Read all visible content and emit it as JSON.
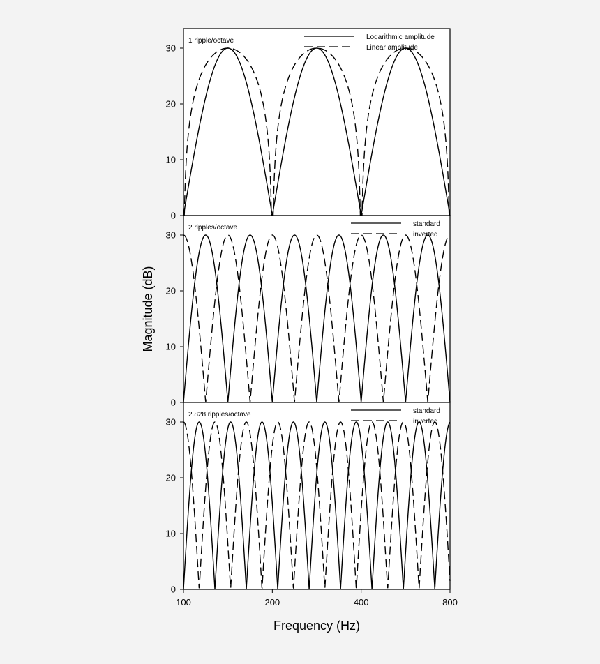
{
  "chart_data": [
    {
      "type": "line",
      "panel_label": "1 ripple/octave",
      "ripple_density": 1,
      "x_scale": "log2",
      "xlim": [
        100,
        800
      ],
      "ylim": [
        0,
        30
      ],
      "yticks": [
        "0",
        "10",
        "20",
        "30"
      ],
      "legend_position": "top-right",
      "series": [
        {
          "name": "Logarithmic amplitude",
          "style": "solid",
          "kind": "log_amplitude",
          "peak": 30
        },
        {
          "name": "Linear amplitude",
          "style": "dashed",
          "kind": "linear_amplitude",
          "peak": 30
        }
      ]
    },
    {
      "type": "line",
      "panel_label": "2 ripples/octave",
      "ripple_density": 2,
      "x_scale": "log2",
      "xlim": [
        100,
        800
      ],
      "ylim": [
        0,
        30
      ],
      "yticks": [
        "0",
        "10",
        "20",
        "30"
      ],
      "legend_position": "top-right",
      "series": [
        {
          "name": "standard",
          "style": "solid",
          "kind": "standard",
          "peak": 30
        },
        {
          "name": "inverted",
          "style": "dashed",
          "kind": "inverted",
          "peak": 30
        }
      ]
    },
    {
      "type": "line",
      "panel_label": "2.828 ripples/octave",
      "ripple_density": 2.828,
      "x_scale": "log2",
      "xlim": [
        100,
        800
      ],
      "ylim": [
        0,
        30
      ],
      "yticks": [
        "0",
        "10",
        "20",
        "30"
      ],
      "legend_position": "top-right",
      "series": [
        {
          "name": "standard",
          "style": "solid",
          "kind": "standard",
          "peak": 30
        },
        {
          "name": "inverted",
          "style": "dashed",
          "kind": "inverted",
          "peak": 30
        }
      ]
    }
  ],
  "axes": {
    "ylabel": "Magnitude (dB)",
    "xlabel": "Frequency (Hz)",
    "xticks": [
      {
        "value": 100,
        "label": "100"
      },
      {
        "value": 200,
        "label": "200"
      },
      {
        "value": 400,
        "label": "400"
      },
      {
        "value": 800,
        "label": "800"
      }
    ]
  },
  "colors": {
    "background": "#f3f3f3",
    "plot_background": "#ffffff",
    "ink": "#000000"
  }
}
